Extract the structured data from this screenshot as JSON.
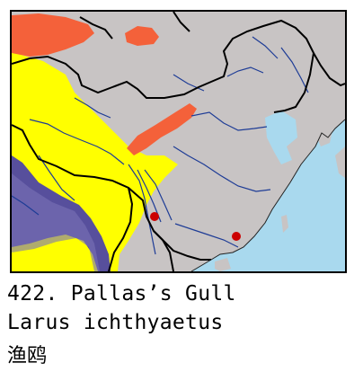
{
  "map": {
    "colors": {
      "sea": "#a9d9ee",
      "land": "#c8c4c4",
      "breeding": "#f4613a",
      "wintering": "#ffff00",
      "resident": "#574f9c",
      "records": "#cc0000",
      "border": "#000000",
      "river": "#1e3c96"
    }
  },
  "caption": {
    "title": "422. Pallas’s Gull",
    "scientific_name": "Larus ichthyaetus",
    "chinese_name": "渔鸥"
  }
}
